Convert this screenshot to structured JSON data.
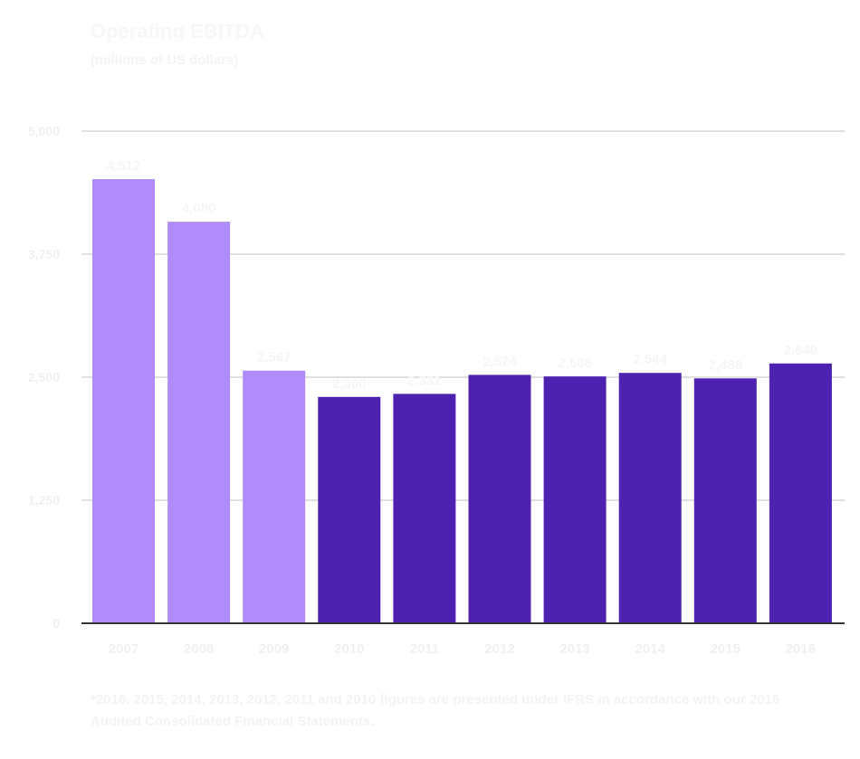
{
  "chart_data": {
    "type": "bar",
    "title": "Operating EBITDA",
    "subtitle": "(millions of US dollars)",
    "categories": [
      "2007",
      "2008",
      "2009",
      "2010",
      "2011",
      "2012",
      "2013",
      "2014",
      "2015",
      "2016"
    ],
    "values": [
      4512,
      4080,
      2567,
      2300,
      2331,
      2524,
      2508,
      2544,
      2488,
      2640
    ],
    "data_labels": [
      "4,512",
      "4,080",
      "2,567",
      "2,300",
      "2,331",
      "2,524",
      "2,508",
      "2,544",
      "2,488",
      "2,640"
    ],
    "ylim": [
      0,
      5000
    ],
    "yticks": [
      0,
      1250,
      2500,
      3750,
      5000
    ],
    "ytick_labels": [
      "0",
      "1,250",
      "2,500",
      "3,750",
      "5,000"
    ],
    "grid": true,
    "colors": {
      "pre_ifrs": "#b08cfa",
      "ifrs": "#4d22b0",
      "grid": "#c0c0c0",
      "axis": "#333333"
    },
    "ifrs_from_index": 3,
    "footnote": "*2016, 2015, 2014, 2013, 2012, 2011 and 2010 figures are presented under IFRS in accordance with our 2016 Audited Consolidated Financial Statements."
  }
}
